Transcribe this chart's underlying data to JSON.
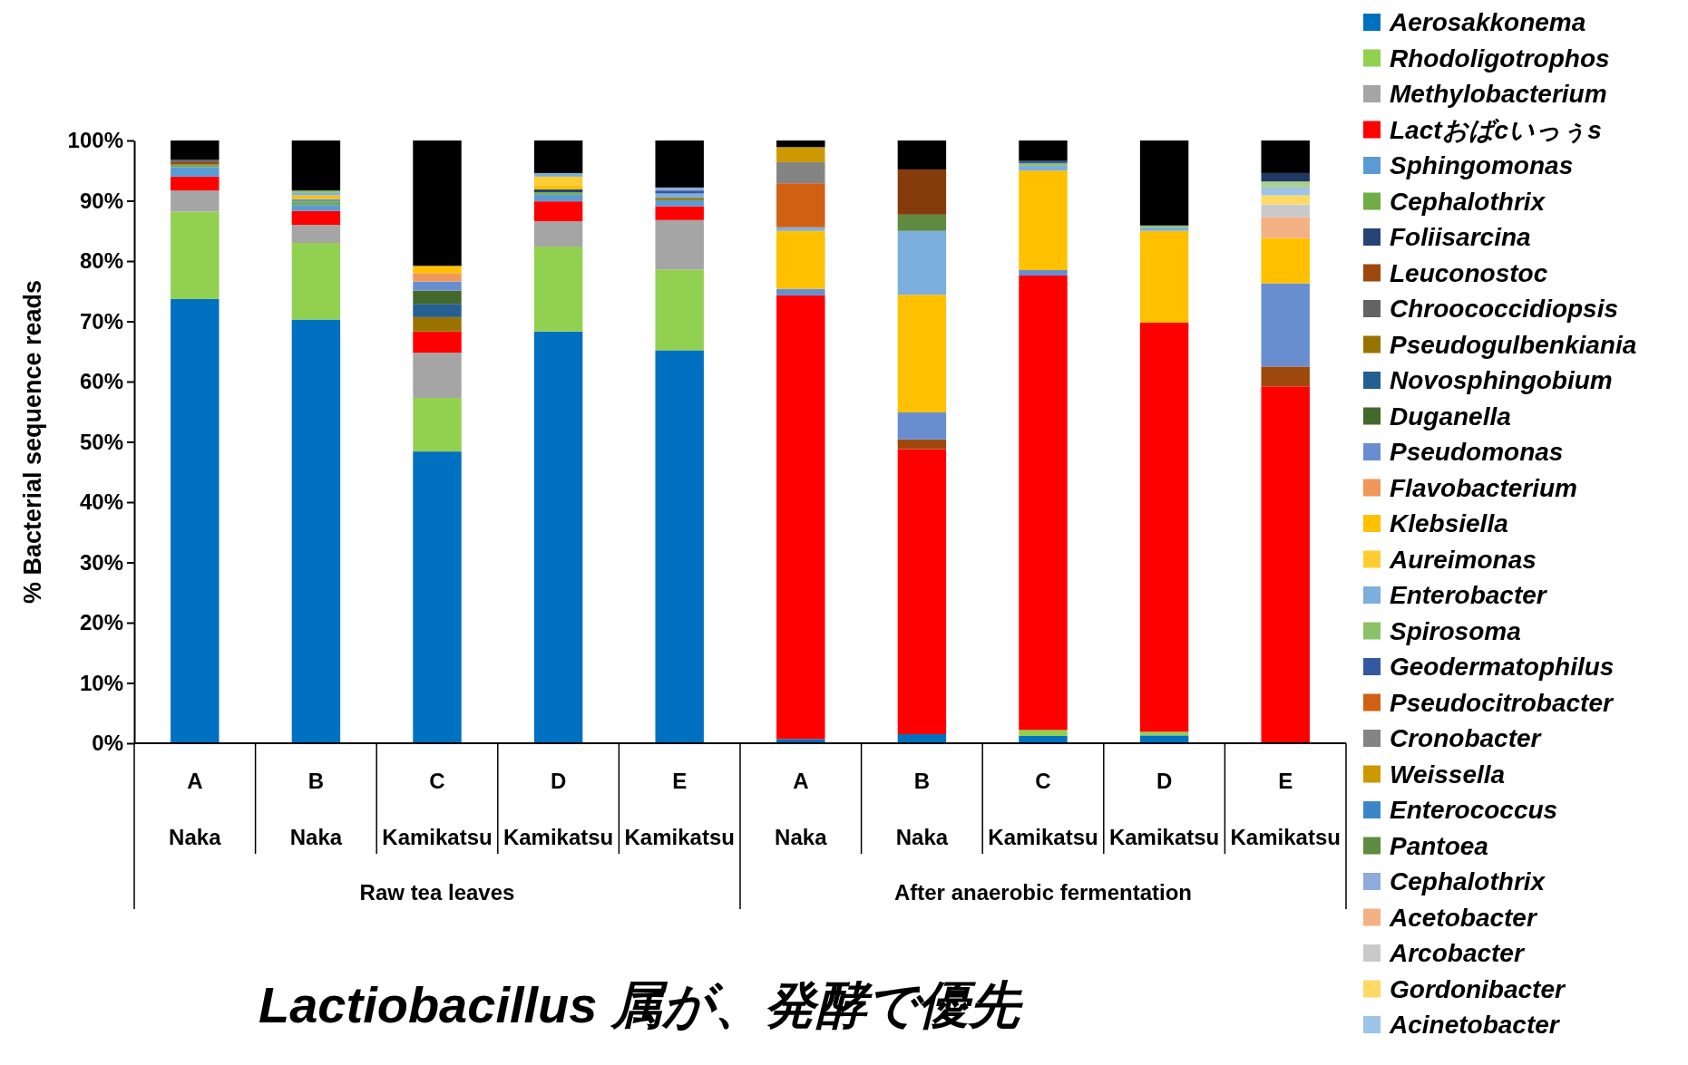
{
  "chart_data": {
    "type": "bar",
    "stacked": true,
    "ylabel": "% Bacterial sequence reads",
    "categories": [
      "A\nNaka",
      "B\nNaka",
      "C\nKamikatsu",
      "D\nKamikatsu",
      "E\nKamikatsu",
      "A\nNaka",
      "B\nNaka",
      "C\nKamikatsu",
      "D\nKamikatsu",
      "E\nKamikatsu"
    ],
    "ylim": [
      0,
      100
    ],
    "yticks": [
      {
        "value": 0,
        "label": "0%"
      },
      {
        "value": 10,
        "label": "10%"
      },
      {
        "value": 20,
        "label": "20%"
      },
      {
        "value": 30,
        "label": "30%"
      },
      {
        "value": 40,
        "label": "40%"
      },
      {
        "value": 50,
        "label": "50%"
      },
      {
        "value": 60,
        "label": "60%"
      },
      {
        "value": 70,
        "label": "70%"
      },
      {
        "value": 80,
        "label": "80%"
      },
      {
        "value": 90,
        "label": "90%"
      },
      {
        "value": 100,
        "label": "100%"
      }
    ],
    "grid": false,
    "legend": "right",
    "annotations": [
      "Raw tea leaves",
      "After anaerobic fermentation",
      "Lactiobacillus 属が、発酵で優先"
    ],
    "series": [
      {
        "name": "Aerosakkonema",
        "color": "#0070c0",
        "values": [
          73.7,
          70.3,
          48.4,
          68.3,
          65.2,
          0.7,
          1.5,
          1.2,
          1.3,
          null
        ]
      },
      {
        "name": "Rhodoligotrophos",
        "color": "#92d050",
        "values": [
          14.5,
          12.7,
          8.9,
          14.1,
          13.4,
          null,
          null,
          1.0,
          0.6,
          null
        ]
      },
      {
        "name": "Methylobacterium",
        "color": "#a5a5a5",
        "values": [
          3.5,
          3.0,
          7.5,
          4.2,
          8.2,
          null,
          null,
          null,
          null,
          null
        ]
      },
      {
        "name": "Lactおばcいっぅs",
        "color": "#ff0000",
        "values": [
          2.3,
          2.3,
          3.5,
          3.3,
          2.3,
          73.6,
          47.3,
          75.4,
          67.9,
          59.2
        ]
      },
      {
        "name": "Sphingomonas",
        "color": "#5b9bd5",
        "values": [
          1.6,
          1.0,
          null,
          1.1,
          1.0,
          null,
          null,
          null,
          null,
          null
        ]
      },
      {
        "name": "Cephalothrix",
        "color": "#70ad47",
        "values": [
          0.4,
          0.6,
          null,
          0.4,
          null,
          null,
          null,
          null,
          null,
          null
        ]
      },
      {
        "name": "Foliisarcina",
        "color": "#264478",
        "values": [
          null,
          null,
          null,
          0.5,
          null,
          null,
          null,
          null,
          null,
          null
        ]
      },
      {
        "name": "Leuconostoc",
        "color": "#9e480e",
        "values": [
          0.4,
          null,
          null,
          null,
          null,
          null,
          1.6,
          null,
          null,
          3.3
        ]
      },
      {
        "name": "Chroococcidiopsis",
        "color": "#636363",
        "values": [
          0.4,
          null,
          null,
          null,
          null,
          null,
          null,
          null,
          null,
          null
        ]
      },
      {
        "name": "Pseudogulbenkiania",
        "color": "#997300",
        "values": [
          null,
          null,
          2.4,
          null,
          0.4,
          null,
          null,
          null,
          null,
          null
        ]
      },
      {
        "name": "Novosphingobium",
        "color": "#255e91",
        "values": [
          null,
          null,
          2.2,
          null,
          null,
          null,
          null,
          null,
          null,
          null
        ]
      },
      {
        "name": "Duganella",
        "color": "#43682b",
        "values": [
          null,
          null,
          2.2,
          null,
          null,
          null,
          null,
          null,
          null,
          null
        ]
      },
      {
        "name": "Pseudomonas",
        "color": "#698ed0",
        "values": [
          null,
          0.4,
          1.5,
          null,
          null,
          1.1,
          4.5,
          0.9,
          null,
          13.8
        ]
      },
      {
        "name": "Flavobacterium",
        "color": "#f1975a",
        "values": [
          null,
          null,
          1.4,
          null,
          null,
          null,
          null,
          null,
          null,
          null
        ]
      },
      {
        "name": "Klebsiella",
        "color": "#ffc000",
        "values": [
          null,
          0.6,
          1.2,
          0.6,
          null,
          9.6,
          19.5,
          16.5,
          15.2,
          7.5
        ]
      },
      {
        "name": "Aureimonas",
        "color": "#ffcd33",
        "values": [
          null,
          null,
          null,
          1.5,
          null,
          null,
          null,
          null,
          null,
          null
        ]
      },
      {
        "name": "Enterobacter",
        "color": "#7cafdd",
        "values": [
          null,
          0.4,
          null,
          0.6,
          0.7,
          0.6,
          10.6,
          0.8,
          0.6,
          null
        ]
      },
      {
        "name": "Spirosoma",
        "color": "#8cc168",
        "values": [
          null,
          0.4,
          null,
          null,
          null,
          null,
          null,
          0.4,
          0.3,
          null
        ]
      },
      {
        "name": "Geodermatophilus",
        "color": "#335aa1",
        "values": [
          null,
          null,
          null,
          null,
          0.5,
          null,
          null,
          0.4,
          null,
          null
        ]
      },
      {
        "name": "Pseudocitrobacter",
        "color": "#d26012",
        "values": [
          null,
          null,
          null,
          null,
          null,
          7.3,
          null,
          null,
          null,
          null
        ]
      },
      {
        "name": "Cronobacter",
        "color": "#848484",
        "values": [
          null,
          null,
          null,
          null,
          null,
          3.5,
          null,
          null,
          null,
          null
        ]
      },
      {
        "name": "Weissella",
        "color": "#cc9a00",
        "values": [
          null,
          null,
          null,
          null,
          null,
          2.5,
          null,
          null,
          null,
          null
        ]
      },
      {
        "name": "Enterococcus",
        "color": "#3a87c8",
        "values": [
          null,
          null,
          null,
          null,
          null,
          null,
          null,
          null,
          null,
          null
        ]
      },
      {
        "name": "Pantoea",
        "color": "#5e8b3f",
        "values": [
          null,
          null,
          null,
          null,
          null,
          null,
          2.7,
          null,
          null,
          null
        ]
      },
      {
        "name": "Cephalothrix",
        "color": "#8faadc",
        "values": [
          null,
          null,
          null,
          null,
          0.5,
          null,
          null,
          null,
          null,
          null
        ]
      },
      {
        "name": "Acetobacter",
        "color": "#f4b183",
        "values": [
          null,
          null,
          null,
          null,
          null,
          null,
          null,
          null,
          null,
          3.5
        ]
      },
      {
        "name": "Arcobacter",
        "color": "#c9c9c9",
        "values": [
          null,
          null,
          null,
          null,
          null,
          null,
          null,
          null,
          null,
          2.1
        ]
      },
      {
        "name": "Gordonibacter",
        "color": "#ffd966",
        "values": [
          null,
          null,
          null,
          null,
          null,
          null,
          null,
          null,
          null,
          1.5
        ]
      },
      {
        "name": "Acinetobacter",
        "color": "#9dc3e6",
        "values": [
          null,
          null,
          null,
          null,
          null,
          null,
          null,
          null,
          null,
          1.3
        ]
      },
      {
        "color": "#843c0c",
        "values": [
          null,
          null,
          null,
          null,
          null,
          null,
          7.5,
          null,
          null,
          null
        ]
      },
      {
        "color": "#a9d18e",
        "values": [
          null,
          null,
          null,
          null,
          null,
          null,
          null,
          null,
          null,
          1.0
        ]
      },
      {
        "color": "#203864",
        "values": [
          null,
          null,
          null,
          null,
          null,
          null,
          null,
          null,
          null,
          1.4
        ]
      },
      {
        "color": "#000000",
        "values": [
          3.2,
          8.3,
          20.8,
          5.4,
          7.8,
          1.1,
          4.8,
          3.4,
          14.1,
          5.4
        ]
      }
    ]
  }
}
